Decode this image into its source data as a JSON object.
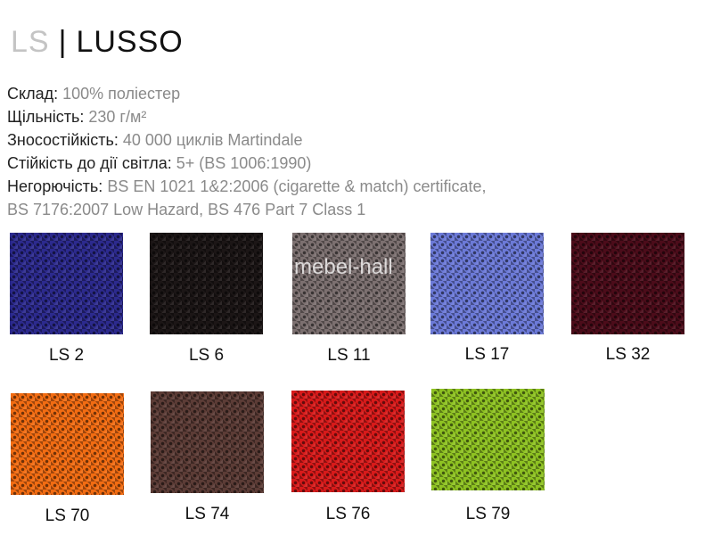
{
  "header": {
    "code": "LS",
    "separator": "|",
    "name": "LUSSO"
  },
  "specs": [
    {
      "label": "Склад:",
      "value": "100% поліестер"
    },
    {
      "label": "Щільність:",
      "value": "230 г/м²"
    },
    {
      "label": "Зносостійкість:",
      "value": "40 000 циклів Martindale"
    },
    {
      "label": "Стійкість до дії світла:",
      "value": "5+ (BS 1006:1990)"
    },
    {
      "label": "Негорючість:",
      "value": "BS EN 1021 1&2:2006 (cigarette & match) certificate,"
    },
    {
      "label": "",
      "value": "BS 7176:2007 Low Hazard, BS 476 Part 7 Class 1"
    }
  ],
  "swatches": [
    {
      "label": "LS 2",
      "color": "#2c2a8e"
    },
    {
      "label": "LS 6",
      "color": "#1c1616"
    },
    {
      "label": "LS 11",
      "color": "#7c7070"
    },
    {
      "label": "LS 17",
      "color": "#6c7ad8"
    },
    {
      "label": "LS 32",
      "color": "#4c0c1a"
    },
    {
      "label": "LS 70",
      "color": "#f26c12"
    },
    {
      "label": "LS 74",
      "color": "#5c3c36"
    },
    {
      "label": "LS 76",
      "color": "#d81a1a"
    },
    {
      "label": "LS 79",
      "color": "#8ec222"
    }
  ],
  "watermark": "mebel-hall"
}
